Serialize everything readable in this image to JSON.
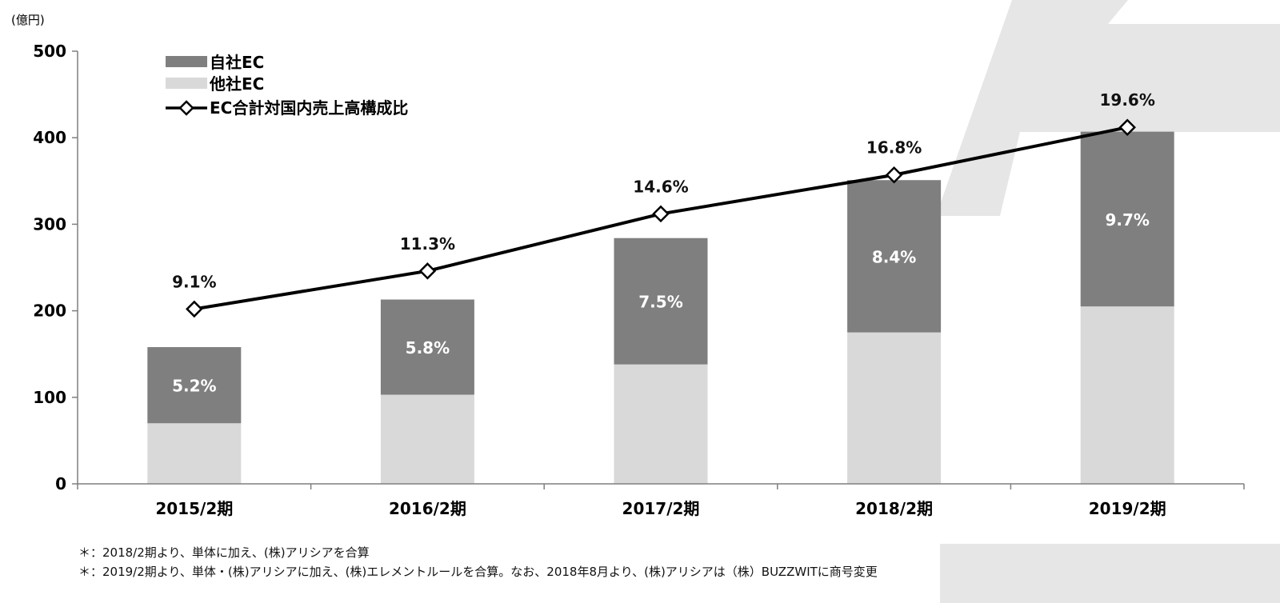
{
  "chart_data": {
    "type": "bar",
    "stacked": true,
    "unit_label": "(億円)",
    "categories": [
      "2015/2期",
      "2016/2期",
      "2017/2期",
      "2018/2期",
      "2019/2期"
    ],
    "series": [
      {
        "name": "他社EC",
        "values": [
          70,
          103,
          138,
          175,
          205
        ],
        "color": "#d9d9d9"
      },
      {
        "name": "自社EC",
        "values": [
          88,
          110,
          146,
          176,
          202
        ],
        "color": "#7f7f7f",
        "labels": [
          "5.2%",
          "5.8%",
          "7.5%",
          "8.4%",
          "9.7%"
        ]
      }
    ],
    "line_series": {
      "name": "EC合計対国内売上高構成比",
      "values": [
        202,
        246,
        312,
        357,
        412
      ],
      "labels": [
        "9.1%",
        "11.3%",
        "14.6%",
        "16.8%",
        "19.6%"
      ],
      "color": "#000000"
    },
    "ylim": [
      0,
      500
    ],
    "yticks": [
      0,
      100,
      200,
      300,
      400,
      500
    ],
    "grid": false,
    "legend_position": "top-left"
  },
  "notes": [
    "＊：2018/2期より、単体に加え、(株)アリシアを合算",
    "＊：2019/2期より、単体・(株)アリシアに加え、(株)エレメントルールを合算。なお、2018年8月より、(株)アリシアは（株）BUZZWITに商号変更"
  ]
}
